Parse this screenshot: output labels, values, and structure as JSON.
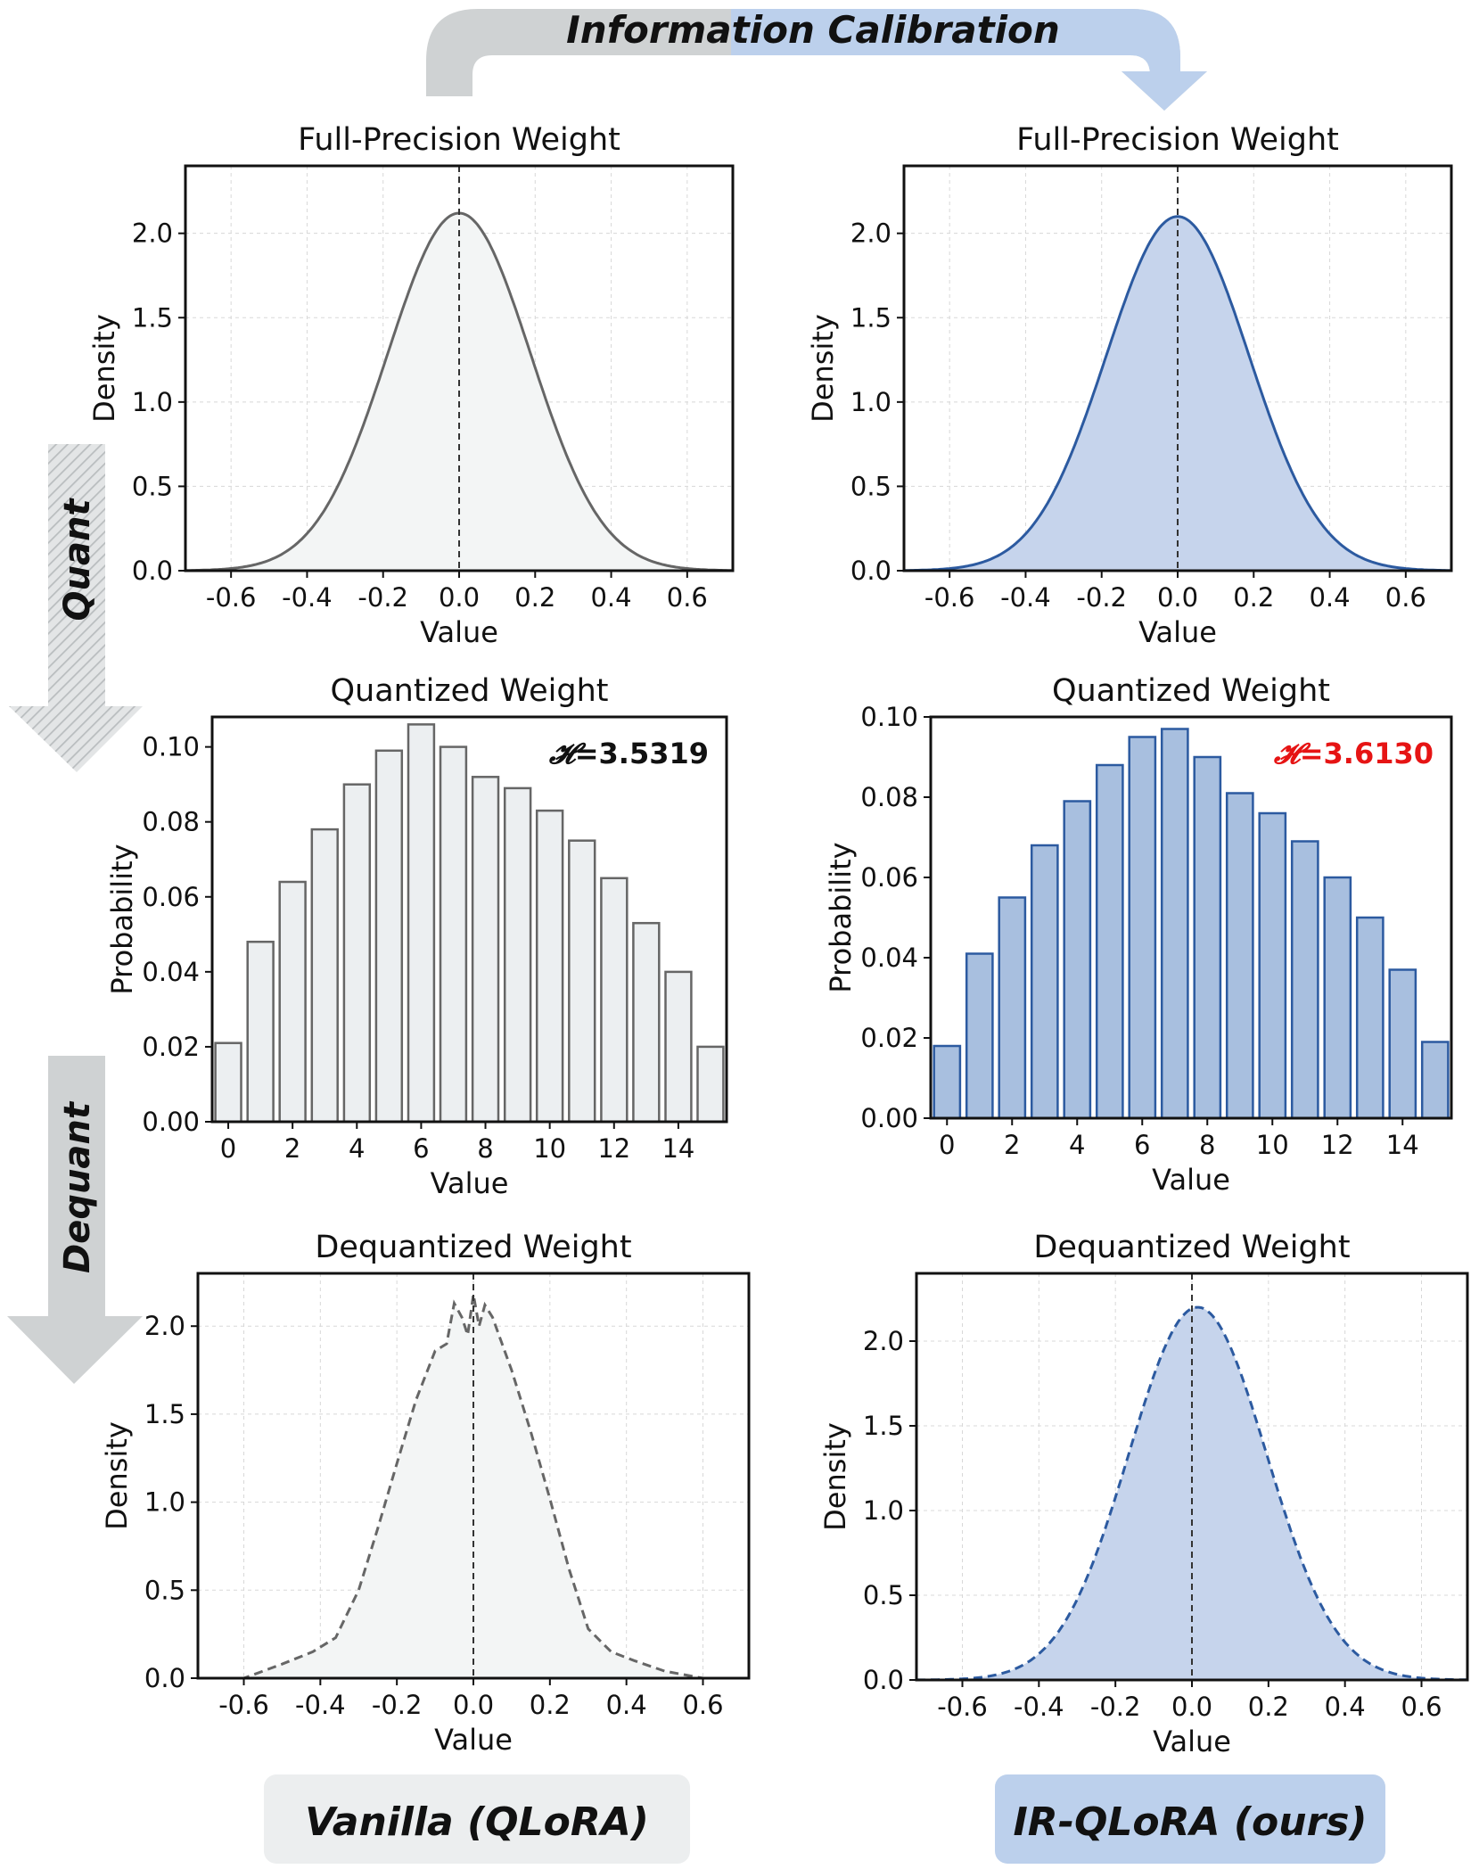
{
  "header": {
    "title": "Information Calibration"
  },
  "side": {
    "quant": "Quant",
    "dequant": "Dequant"
  },
  "footer": {
    "left": "Vanilla (QLoRA)",
    "right": "IR-QLoRA (ours)"
  },
  "colors": {
    "vanilla_line": "#666666",
    "vanilla_fill": "#f3f5f5",
    "vanilla_bar": "#eceff1",
    "ir_line": "#2c5aa0",
    "ir_fill": "#c6d4ec",
    "ir_bar": "#a8bfdf",
    "entropy_vanilla": "#111111",
    "entropy_ir": "#e61414",
    "arrow_grey": "#cfd2d3",
    "arrow_blue": "#bcd0ec"
  },
  "chart_data": [
    {
      "id": "fp-vanilla",
      "type": "line",
      "title": "Full-Precision Weight",
      "xlabel": "Value",
      "ylabel": "Density",
      "xlim": [
        -0.72,
        0.72
      ],
      "ylim": [
        0,
        2.4
      ],
      "xticks": [
        -0.6,
        -0.4,
        -0.2,
        0.0,
        0.2,
        0.4,
        0.6
      ],
      "xtick_labels": [
        "-0.6",
        "-0.4",
        "-0.2",
        "0.0",
        "0.2",
        "0.4",
        "0.6"
      ],
      "yticks": [
        0.0,
        0.5,
        1.0,
        1.5,
        2.0
      ],
      "ytick_labels": [
        "0.0",
        "0.5",
        "1.0",
        "1.5",
        "2.0"
      ],
      "grid": true,
      "vline_x": 0.0,
      "line_style": "solid",
      "variant": "vanilla",
      "curve": {
        "kind": "gauss",
        "mu": 0.0,
        "sigma": 0.188,
        "peak": 2.12
      }
    },
    {
      "id": "fp-ir",
      "type": "line",
      "title": "Full-Precision Weight",
      "xlabel": "Value",
      "ylabel": "Density",
      "xlim": [
        -0.72,
        0.72
      ],
      "ylim": [
        0,
        2.4
      ],
      "xticks": [
        -0.6,
        -0.4,
        -0.2,
        0.0,
        0.2,
        0.4,
        0.6
      ],
      "xtick_labels": [
        "-0.6",
        "-0.4",
        "-0.2",
        "0.0",
        "0.2",
        "0.4",
        "0.6"
      ],
      "yticks": [
        0.0,
        0.5,
        1.0,
        1.5,
        2.0
      ],
      "ytick_labels": [
        "0.0",
        "0.5",
        "1.0",
        "1.5",
        "2.0"
      ],
      "grid": true,
      "vline_x": 0.0,
      "line_style": "solid",
      "variant": "ir",
      "curve": {
        "kind": "gauss",
        "mu": 0.0,
        "sigma": 0.188,
        "peak": 2.1
      }
    },
    {
      "id": "q-vanilla",
      "type": "bar",
      "title": "Quantized Weight",
      "xlabel": "Value",
      "ylabel": "Probability",
      "xlim": [
        -0.5,
        15.5
      ],
      "ylim": [
        0,
        0.108
      ],
      "xticks": [
        0,
        2,
        4,
        6,
        8,
        10,
        12,
        14
      ],
      "xtick_labels": [
        "0",
        "2",
        "4",
        "6",
        "8",
        "10",
        "12",
        "14"
      ],
      "yticks": [
        0.0,
        0.02,
        0.04,
        0.06,
        0.08,
        0.1
      ],
      "ytick_labels": [
        "0.00",
        "0.02",
        "0.04",
        "0.06",
        "0.08",
        "0.10"
      ],
      "grid": false,
      "variant": "vanilla",
      "categories": [
        0,
        1,
        2,
        3,
        4,
        5,
        6,
        7,
        8,
        9,
        10,
        11,
        12,
        13,
        14,
        15
      ],
      "values": [
        0.021,
        0.048,
        0.064,
        0.078,
        0.09,
        0.099,
        0.106,
        0.1,
        0.092,
        0.089,
        0.083,
        0.075,
        0.065,
        0.053,
        0.04,
        0.02
      ],
      "annotation": {
        "symbol": "𝓗",
        "text": "=3.5319"
      }
    },
    {
      "id": "q-ir",
      "type": "bar",
      "title": "Quantized Weight",
      "xlabel": "Value",
      "ylabel": "Probability",
      "xlim": [
        -0.5,
        15.5
      ],
      "ylim": [
        0,
        0.1
      ],
      "xticks": [
        0,
        2,
        4,
        6,
        8,
        10,
        12,
        14
      ],
      "xtick_labels": [
        "0",
        "2",
        "4",
        "6",
        "8",
        "10",
        "12",
        "14"
      ],
      "yticks": [
        0.0,
        0.02,
        0.04,
        0.06,
        0.08,
        0.1
      ],
      "ytick_labels": [
        "0.00",
        "0.02",
        "0.04",
        "0.06",
        "0.08",
        "0.10"
      ],
      "grid": false,
      "variant": "ir",
      "categories": [
        0,
        1,
        2,
        3,
        4,
        5,
        6,
        7,
        8,
        9,
        10,
        11,
        12,
        13,
        14,
        15
      ],
      "values": [
        0.018,
        0.041,
        0.055,
        0.068,
        0.079,
        0.088,
        0.095,
        0.097,
        0.09,
        0.081,
        0.076,
        0.069,
        0.06,
        0.05,
        0.037,
        0.019
      ],
      "annotation": {
        "symbol": "𝓗",
        "text": "=3.6130"
      }
    },
    {
      "id": "dq-vanilla",
      "type": "line",
      "title": "Dequantized Weight",
      "xlabel": "Value",
      "ylabel": "Density",
      "xlim": [
        -0.72,
        0.72
      ],
      "ylim": [
        0,
        2.3
      ],
      "xticks": [
        -0.6,
        -0.4,
        -0.2,
        0.0,
        0.2,
        0.4,
        0.6
      ],
      "xtick_labels": [
        "-0.6",
        "-0.4",
        "-0.2",
        "0.0",
        "0.2",
        "0.4",
        "0.6"
      ],
      "yticks": [
        0.0,
        0.5,
        1.0,
        1.5,
        2.0
      ],
      "ytick_labels": [
        "0.0",
        "0.5",
        "1.0",
        "1.5",
        "2.0"
      ],
      "grid": true,
      "vline_x": 0.0,
      "line_style": "dashed",
      "variant": "vanilla",
      "curve": {
        "kind": "points",
        "x": [
          -0.72,
          -0.6,
          -0.5,
          -0.42,
          -0.36,
          -0.3,
          -0.25,
          -0.2,
          -0.15,
          -0.1,
          -0.07,
          -0.05,
          -0.03,
          -0.015,
          0.0,
          0.015,
          0.03,
          0.05,
          0.07,
          0.1,
          0.15,
          0.2,
          0.25,
          0.3,
          0.36,
          0.42,
          0.5,
          0.6,
          0.72
        ],
        "y": [
          0.0,
          0.0,
          0.08,
          0.15,
          0.23,
          0.5,
          0.85,
          1.22,
          1.58,
          1.86,
          1.9,
          2.13,
          2.05,
          1.95,
          2.18,
          2.0,
          2.12,
          2.05,
          1.93,
          1.75,
          1.4,
          1.02,
          0.62,
          0.28,
          0.15,
          0.1,
          0.04,
          0.0,
          0.0
        ]
      }
    },
    {
      "id": "dq-ir",
      "type": "line",
      "title": "Dequantized Weight",
      "xlabel": "Value",
      "ylabel": "Density",
      "xlim": [
        -0.72,
        0.72
      ],
      "ylim": [
        0,
        2.4
      ],
      "xticks": [
        -0.6,
        -0.4,
        -0.2,
        0.0,
        0.2,
        0.4,
        0.6
      ],
      "xtick_labels": [
        "-0.6",
        "-0.4",
        "-0.2",
        "0.0",
        "0.2",
        "0.4",
        "0.6"
      ],
      "yticks": [
        0.0,
        0.5,
        1.0,
        1.5,
        2.0
      ],
      "ytick_labels": [
        "0.0",
        "0.5",
        "1.0",
        "1.5",
        "2.0"
      ],
      "grid": true,
      "vline_x": 0.0,
      "line_style": "dashed",
      "variant": "ir",
      "curve": {
        "kind": "gauss",
        "mu": 0.015,
        "sigma": 0.18,
        "peak": 2.2
      }
    }
  ]
}
